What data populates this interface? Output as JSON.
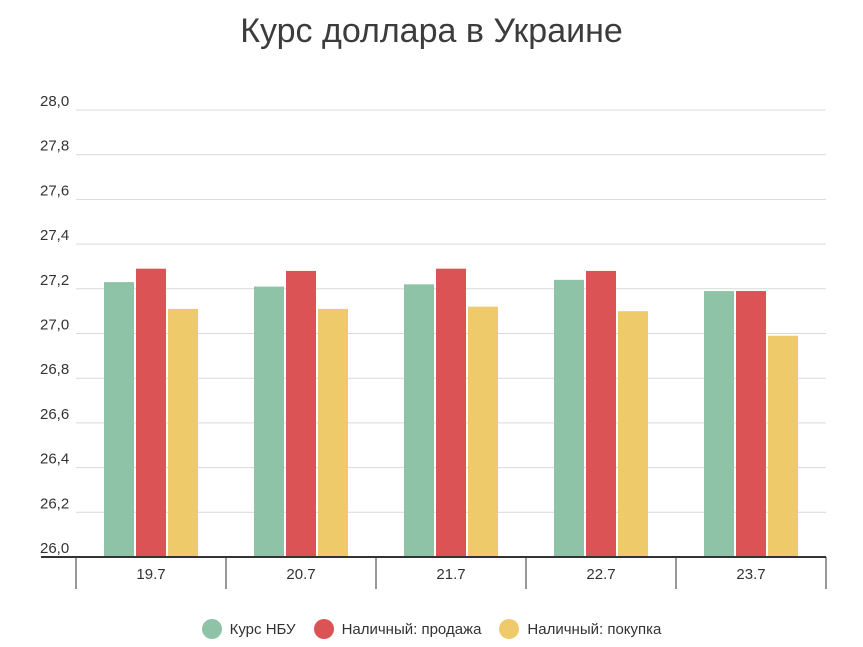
{
  "chart_data": {
    "type": "bar",
    "title": "Курс доллара в Украине",
    "categories": [
      "19.7",
      "20.7",
      "21.7",
      "22.7",
      "23.7"
    ],
    "series": [
      {
        "name": "Курс НБУ",
        "color": "#8fc3a7",
        "values": [
          27.23,
          27.21,
          27.22,
          27.24,
          27.19
        ]
      },
      {
        "name": "Наличный: продажа",
        "color": "#dc5356",
        "values": [
          27.29,
          27.28,
          27.29,
          27.28,
          27.19
        ]
      },
      {
        "name": "Наличный: покупка",
        "color": "#efca6a",
        "values": [
          27.11,
          27.11,
          27.12,
          27.1,
          26.99
        ]
      }
    ],
    "ylim": [
      26.0,
      28.0
    ],
    "yticks": [
      "26,0",
      "26,2",
      "26,4",
      "26,6",
      "26,8",
      "27,0",
      "27,2",
      "27,4",
      "27,6",
      "27,8",
      "28,0"
    ],
    "grid": true,
    "legend": "bottom"
  }
}
